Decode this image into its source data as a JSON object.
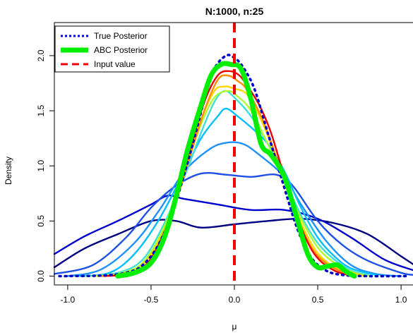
{
  "chart_data": {
    "type": "line",
    "title": "N:1000, n:25",
    "xlabel": "μ",
    "ylabel": "Density",
    "xlim": [
      -1.08,
      1.08
    ],
    "ylim": [
      -0.08,
      2.3
    ],
    "x_ticks": [
      {
        "value": -1.0,
        "label": "-1.0"
      },
      {
        "value": -0.5,
        "label": "-0.5"
      },
      {
        "value": 0.0,
        "label": "0.0"
      },
      {
        "value": 0.5,
        "label": "0.5"
      },
      {
        "value": 1.0,
        "label": "1.0"
      }
    ],
    "y_ticks": [
      {
        "value": 0.0,
        "label": "0.0"
      },
      {
        "value": 0.5,
        "label": "0.5"
      },
      {
        "value": 1.0,
        "label": "1.0"
      },
      {
        "value": 1.5,
        "label": "1.5"
      },
      {
        "value": 2.0,
        "label": "2.0"
      }
    ],
    "legend": {
      "placement": "top-left",
      "entries": [
        {
          "label": "True Posterior",
          "color": "#0000cd",
          "style": "dotted"
        },
        {
          "label": "ABC Posterior",
          "color": "#00ee00",
          "style": "solid-thick"
        },
        {
          "label": "Input value",
          "color": "#ee0000",
          "style": "dashed"
        }
      ]
    },
    "input_value": 0.0,
    "series": [
      {
        "color": "#000080",
        "points": [
          [
            -1.08,
            0.08
          ],
          [
            -0.9,
            0.25
          ],
          [
            -0.7,
            0.38
          ],
          [
            -0.5,
            0.5
          ],
          [
            -0.35,
            0.5
          ],
          [
            -0.2,
            0.44
          ],
          [
            0.0,
            0.47
          ],
          [
            0.2,
            0.5
          ],
          [
            0.4,
            0.52
          ],
          [
            0.6,
            0.48
          ],
          [
            0.8,
            0.38
          ],
          [
            1.0,
            0.18
          ],
          [
            1.08,
            0.1
          ]
        ]
      },
      {
        "color": "#0000cd",
        "points": [
          [
            -1.08,
            0.2
          ],
          [
            -0.9,
            0.36
          ],
          [
            -0.7,
            0.5
          ],
          [
            -0.5,
            0.65
          ],
          [
            -0.4,
            0.73
          ],
          [
            -0.3,
            0.7
          ],
          [
            -0.1,
            0.65
          ],
          [
            0.1,
            0.6
          ],
          [
            0.3,
            0.6
          ],
          [
            0.5,
            0.52
          ],
          [
            0.7,
            0.35
          ],
          [
            0.9,
            0.15
          ],
          [
            1.08,
            0.05
          ]
        ]
      },
      {
        "color": "#1e50e8",
        "points": [
          [
            -1.08,
            0.02
          ],
          [
            -0.85,
            0.1
          ],
          [
            -0.65,
            0.35
          ],
          [
            -0.5,
            0.62
          ],
          [
            -0.35,
            0.82
          ],
          [
            -0.2,
            0.93
          ],
          [
            -0.05,
            0.92
          ],
          [
            0.1,
            0.9
          ],
          [
            0.25,
            0.92
          ],
          [
            0.35,
            0.82
          ],
          [
            0.5,
            0.5
          ],
          [
            0.65,
            0.28
          ],
          [
            0.8,
            0.14
          ],
          [
            1.0,
            0.03
          ],
          [
            1.08,
            0.01
          ]
        ]
      },
      {
        "color": "#1e90ff",
        "points": [
          [
            -1.0,
            0.0
          ],
          [
            -0.8,
            0.06
          ],
          [
            -0.6,
            0.3
          ],
          [
            -0.45,
            0.6
          ],
          [
            -0.3,
            0.95
          ],
          [
            -0.15,
            1.15
          ],
          [
            -0.05,
            1.21
          ],
          [
            0.05,
            1.2
          ],
          [
            0.15,
            1.1
          ],
          [
            0.3,
            0.9
          ],
          [
            0.4,
            0.65
          ],
          [
            0.55,
            0.32
          ],
          [
            0.7,
            0.1
          ],
          [
            0.85,
            0.02
          ],
          [
            1.0,
            0.0
          ]
        ]
      },
      {
        "color": "#00bfff",
        "points": [
          [
            -0.95,
            0.0
          ],
          [
            -0.75,
            0.03
          ],
          [
            -0.6,
            0.2
          ],
          [
            -0.45,
            0.52
          ],
          [
            -0.3,
            0.95
          ],
          [
            -0.2,
            1.25
          ],
          [
            -0.1,
            1.45
          ],
          [
            -0.05,
            1.52
          ],
          [
            0.02,
            1.45
          ],
          [
            0.1,
            1.35
          ],
          [
            0.2,
            1.2
          ],
          [
            0.3,
            0.95
          ],
          [
            0.4,
            0.62
          ],
          [
            0.5,
            0.35
          ],
          [
            0.6,
            0.18
          ],
          [
            0.7,
            0.07
          ],
          [
            0.85,
            0.01
          ]
        ]
      },
      {
        "color": "#40e0d0",
        "points": [
          [
            -0.9,
            0.0
          ],
          [
            -0.7,
            0.03
          ],
          [
            -0.55,
            0.15
          ],
          [
            -0.42,
            0.48
          ],
          [
            -0.3,
            0.9
          ],
          [
            -0.2,
            1.3
          ],
          [
            -0.12,
            1.58
          ],
          [
            -0.06,
            1.68
          ],
          [
            0.0,
            1.62
          ],
          [
            0.1,
            1.45
          ],
          [
            0.2,
            1.2
          ],
          [
            0.3,
            0.88
          ],
          [
            0.4,
            0.55
          ],
          [
            0.5,
            0.3
          ],
          [
            0.6,
            0.15
          ],
          [
            0.7,
            0.05
          ],
          [
            0.8,
            0.01
          ]
        ]
      },
      {
        "color": "#adff2f",
        "points": [
          [
            -0.85,
            0.0
          ],
          [
            -0.7,
            0.02
          ],
          [
            -0.55,
            0.12
          ],
          [
            -0.42,
            0.45
          ],
          [
            -0.3,
            0.95
          ],
          [
            -0.2,
            1.38
          ],
          [
            -0.12,
            1.62
          ],
          [
            -0.04,
            1.68
          ],
          [
            0.02,
            1.63
          ],
          [
            0.1,
            1.5
          ],
          [
            0.2,
            1.2
          ],
          [
            0.3,
            0.85
          ],
          [
            0.4,
            0.52
          ],
          [
            0.5,
            0.26
          ],
          [
            0.6,
            0.12
          ],
          [
            0.7,
            0.04
          ],
          [
            0.8,
            0.0
          ]
        ]
      },
      {
        "color": "#ffd700",
        "points": [
          [
            -0.82,
            0.0
          ],
          [
            -0.68,
            0.02
          ],
          [
            -0.55,
            0.1
          ],
          [
            -0.42,
            0.42
          ],
          [
            -0.3,
            0.95
          ],
          [
            -0.2,
            1.42
          ],
          [
            -0.12,
            1.68
          ],
          [
            -0.06,
            1.72
          ],
          [
            0.0,
            1.7
          ],
          [
            0.08,
            1.64
          ],
          [
            0.18,
            1.35
          ],
          [
            0.28,
            0.95
          ],
          [
            0.38,
            0.55
          ],
          [
            0.48,
            0.25
          ],
          [
            0.58,
            0.1
          ],
          [
            0.68,
            0.04
          ],
          [
            0.78,
            0.0
          ]
        ]
      },
      {
        "color": "#ff8c00",
        "points": [
          [
            -0.8,
            0.0
          ],
          [
            -0.65,
            0.02
          ],
          [
            -0.52,
            0.12
          ],
          [
            -0.4,
            0.45
          ],
          [
            -0.28,
            1.02
          ],
          [
            -0.18,
            1.5
          ],
          [
            -0.1,
            1.78
          ],
          [
            -0.04,
            1.82
          ],
          [
            0.02,
            1.77
          ],
          [
            0.08,
            1.68
          ],
          [
            0.18,
            1.38
          ],
          [
            0.28,
            0.95
          ],
          [
            0.38,
            0.52
          ],
          [
            0.48,
            0.22
          ],
          [
            0.6,
            0.07
          ],
          [
            0.72,
            0.01
          ]
        ]
      },
      {
        "color": "#ee0000",
        "points": [
          [
            -0.78,
            0.0
          ],
          [
            -0.65,
            0.02
          ],
          [
            -0.52,
            0.12
          ],
          [
            -0.4,
            0.48
          ],
          [
            -0.28,
            1.08
          ],
          [
            -0.18,
            1.58
          ],
          [
            -0.1,
            1.82
          ],
          [
            -0.03,
            1.86
          ],
          [
            0.03,
            1.82
          ],
          [
            0.08,
            1.72
          ],
          [
            0.15,
            1.55
          ],
          [
            0.22,
            1.3
          ],
          [
            0.3,
            0.9
          ],
          [
            0.38,
            0.52
          ],
          [
            0.48,
            0.2
          ],
          [
            0.6,
            0.05
          ],
          [
            0.72,
            0.0
          ]
        ]
      },
      {
        "color": "#0000cd",
        "dashed": true,
        "width": 3.5,
        "points": [
          [
            -1.05,
            0.0
          ],
          [
            -0.8,
            0.005
          ],
          [
            -0.65,
            0.03
          ],
          [
            -0.55,
            0.1
          ],
          [
            -0.45,
            0.3
          ],
          [
            -0.35,
            0.68
          ],
          [
            -0.25,
            1.2
          ],
          [
            -0.18,
            1.6
          ],
          [
            -0.12,
            1.88
          ],
          [
            -0.05,
            2.0
          ],
          [
            0.0,
            1.98
          ],
          [
            0.05,
            1.9
          ],
          [
            0.12,
            1.7
          ],
          [
            0.2,
            1.3
          ],
          [
            0.3,
            0.8
          ],
          [
            0.38,
            0.42
          ],
          [
            0.46,
            0.17
          ],
          [
            0.55,
            0.05
          ],
          [
            0.65,
            0.01
          ],
          [
            0.8,
            0.0
          ],
          [
            1.05,
            0.0
          ]
        ]
      },
      {
        "color": "#00ee00",
        "width": 7,
        "points": [
          [
            -0.7,
            0.0
          ],
          [
            -0.6,
            0.03
          ],
          [
            -0.5,
            0.12
          ],
          [
            -0.42,
            0.35
          ],
          [
            -0.35,
            0.72
          ],
          [
            -0.28,
            1.15
          ],
          [
            -0.2,
            1.55
          ],
          [
            -0.14,
            1.82
          ],
          [
            -0.08,
            1.92
          ],
          [
            -0.02,
            1.92
          ],
          [
            0.04,
            1.88
          ],
          [
            0.1,
            1.6
          ],
          [
            0.16,
            1.2
          ],
          [
            0.22,
            1.1
          ],
          [
            0.3,
            0.9
          ],
          [
            0.37,
            0.55
          ],
          [
            0.44,
            0.2
          ],
          [
            0.5,
            0.08
          ],
          [
            0.56,
            0.09
          ],
          [
            0.62,
            0.1
          ],
          [
            0.67,
            0.04
          ],
          [
            0.72,
            0.0
          ]
        ]
      }
    ]
  }
}
